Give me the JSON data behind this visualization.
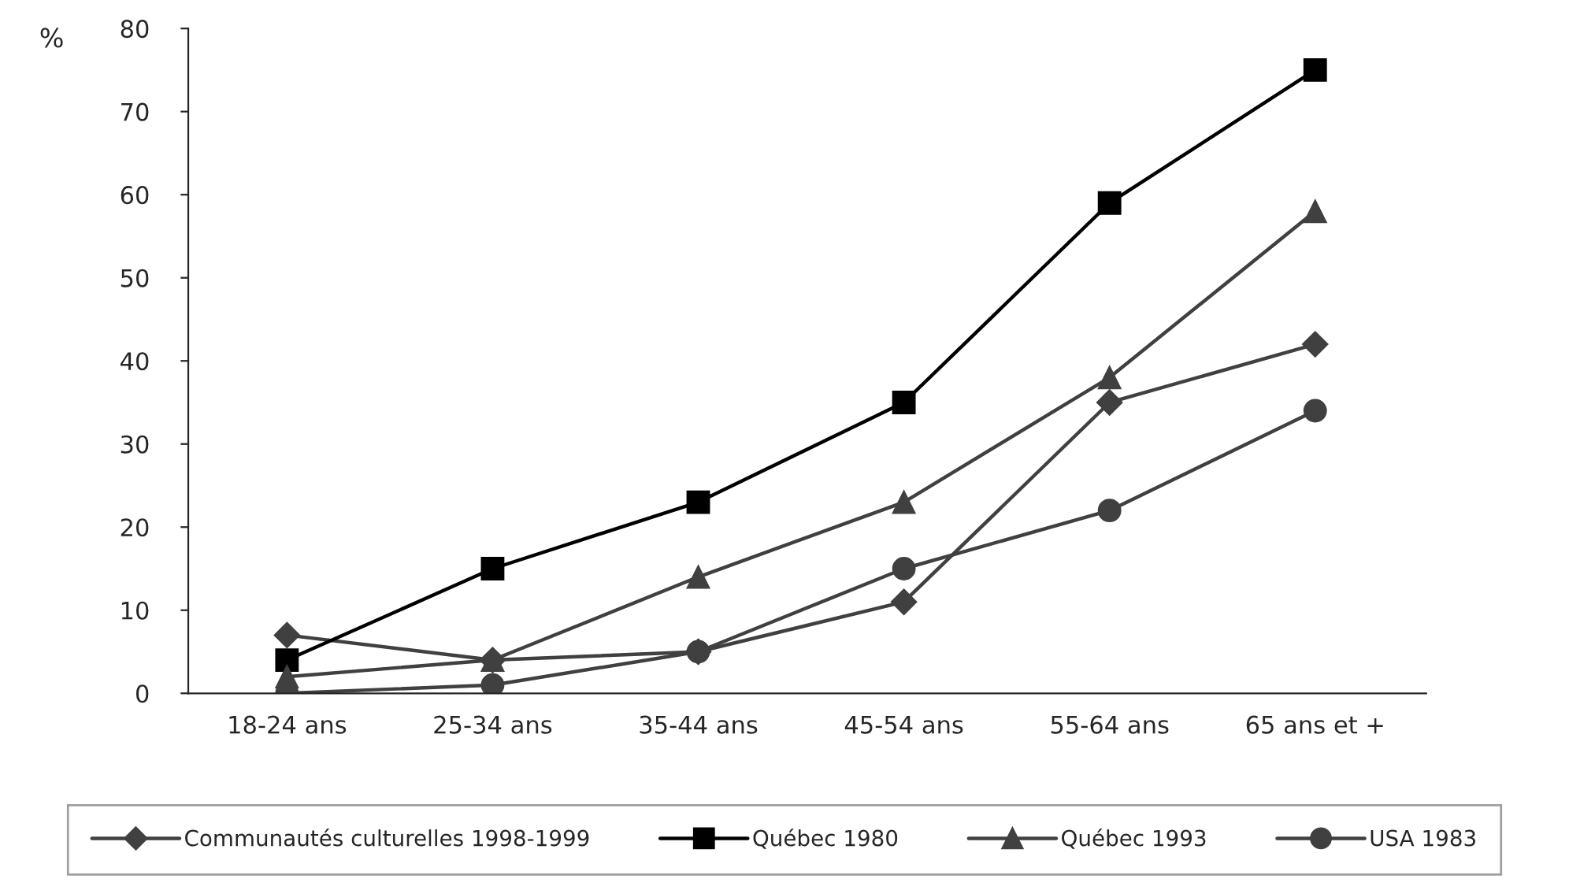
{
  "chart_data": {
    "type": "line",
    "ylabel": "%",
    "categories": [
      "18-24 ans",
      "25-34 ans",
      "35-44 ans",
      "45-54 ans",
      "55-64 ans",
      "65 ans et +"
    ],
    "series": [
      {
        "name": "Communautés culturelles 1998-1999",
        "color": "#404040",
        "marker": "diamond",
        "values": [
          7,
          4,
          5,
          11,
          35,
          42
        ]
      },
      {
        "name": "Québec 1980",
        "color": "#000000",
        "marker": "square",
        "values": [
          4,
          15,
          23,
          35,
          59,
          75
        ]
      },
      {
        "name": "Québec 1993",
        "color": "#404040",
        "marker": "triangle",
        "values": [
          2,
          4,
          14,
          23,
          38,
          58
        ]
      },
      {
        "name": "USA 1983",
        "color": "#404040",
        "marker": "circle",
        "values": [
          0,
          1,
          5,
          15,
          22,
          34
        ]
      }
    ],
    "ylim": [
      0,
      80
    ],
    "yticks": [
      0,
      10,
      20,
      30,
      40,
      50,
      60,
      70,
      80
    ],
    "grid": false,
    "legend": "bottom",
    "line_style": "solid"
  }
}
